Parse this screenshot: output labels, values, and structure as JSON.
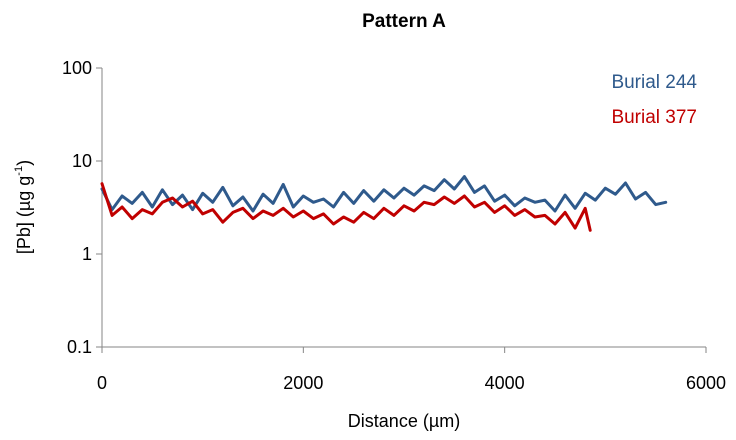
{
  "chart_data": {
    "type": "line",
    "title": "Pattern A",
    "xlabel": "Distance  (µm)",
    "ylabel_main": "[Pb] (µg g",
    "ylabel_sup": "-1",
    "ylabel_close": ")",
    "y_scale": "log",
    "xlim": [
      0,
      6000
    ],
    "ylim": [
      0.1,
      100
    ],
    "x_ticks": [
      0,
      2000,
      4000,
      6000
    ],
    "x_tick_labels": [
      "0",
      "2000",
      "4000",
      "6000"
    ],
    "y_ticks": [
      0.1,
      1,
      10,
      100
    ],
    "y_tick_labels": [
      "0.1",
      "1",
      "10",
      "100"
    ],
    "grid": false,
    "legend_position": "top-right",
    "series": [
      {
        "name": "Burial 244",
        "color": "#2f5a8c",
        "x": [
          0,
          100,
          200,
          300,
          400,
          500,
          600,
          700,
          800,
          900,
          1000,
          1100,
          1200,
          1300,
          1400,
          1500,
          1600,
          1700,
          1800,
          1900,
          2000,
          2100,
          2200,
          2300,
          2400,
          2500,
          2600,
          2700,
          2800,
          2900,
          3000,
          3100,
          3200,
          3300,
          3400,
          3500,
          3600,
          3700,
          3800,
          3900,
          4000,
          4100,
          4200,
          4300,
          4400,
          4500,
          4600,
          4700,
          4800,
          4900,
          5000,
          5100,
          5200,
          5300,
          5400,
          5500,
          5600
        ],
        "y": [
          5.0,
          3.0,
          4.2,
          3.5,
          4.6,
          3.2,
          4.9,
          3.4,
          4.3,
          3.0,
          4.5,
          3.6,
          5.2,
          3.3,
          4.1,
          2.9,
          4.4,
          3.5,
          5.6,
          3.2,
          4.2,
          3.6,
          3.9,
          3.2,
          4.6,
          3.5,
          4.8,
          3.7,
          4.9,
          4.0,
          5.1,
          4.3,
          5.4,
          4.8,
          6.3,
          5.0,
          6.8,
          4.6,
          5.4,
          3.7,
          4.3,
          3.3,
          4.0,
          3.6,
          3.8,
          2.9,
          4.3,
          3.1,
          4.5,
          3.8,
          5.1,
          4.4,
          5.8,
          3.9,
          4.6,
          3.4,
          3.6
        ]
      },
      {
        "name": "Burial 377",
        "color": "#c00000",
        "x": [
          0,
          100,
          200,
          300,
          400,
          500,
          600,
          700,
          800,
          900,
          1000,
          1100,
          1200,
          1300,
          1400,
          1500,
          1600,
          1700,
          1800,
          1900,
          2000,
          2100,
          2200,
          2300,
          2400,
          2500,
          2600,
          2700,
          2800,
          2900,
          3000,
          3100,
          3200,
          3300,
          3400,
          3500,
          3600,
          3700,
          3800,
          3900,
          4000,
          4100,
          4200,
          4300,
          4400,
          4500,
          4600,
          4700,
          4800,
          4850
        ],
        "y": [
          5.7,
          2.6,
          3.2,
          2.4,
          3.0,
          2.7,
          3.6,
          4.0,
          3.2,
          3.7,
          2.7,
          3.0,
          2.2,
          2.8,
          3.1,
          2.4,
          2.9,
          2.6,
          3.1,
          2.5,
          2.9,
          2.4,
          2.7,
          2.1,
          2.5,
          2.2,
          2.8,
          2.4,
          3.1,
          2.6,
          3.3,
          2.9,
          3.6,
          3.4,
          4.1,
          3.5,
          4.2,
          3.2,
          3.6,
          2.8,
          3.3,
          2.6,
          3.0,
          2.5,
          2.6,
          2.1,
          2.8,
          1.9,
          3.1,
          1.8
        ]
      }
    ]
  }
}
